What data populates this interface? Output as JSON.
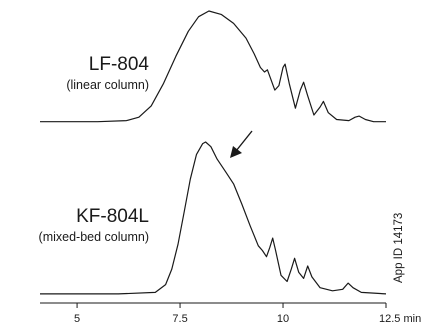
{
  "chart_data": {
    "type": "line",
    "x_unit": "min",
    "xlim": [
      4.1,
      12.5
    ],
    "xticks": [
      {
        "value": 5,
        "label": "5"
      },
      {
        "value": 7.5,
        "label": "7.5"
      },
      {
        "value": 10,
        "label": "10"
      },
      {
        "value": 12.5,
        "label": "12.5 min"
      }
    ],
    "traces": [
      {
        "label": "LF-804",
        "sublabel": "(linear column)",
        "points": [
          [
            4.1,
            0.02
          ],
          [
            5.5,
            0.02
          ],
          [
            6.2,
            0.03
          ],
          [
            6.5,
            0.06
          ],
          [
            6.8,
            0.16
          ],
          [
            7.1,
            0.36
          ],
          [
            7.4,
            0.6
          ],
          [
            7.7,
            0.82
          ],
          [
            7.95,
            0.95
          ],
          [
            8.2,
            1.0
          ],
          [
            8.5,
            0.97
          ],
          [
            8.8,
            0.89
          ],
          [
            9.1,
            0.76
          ],
          [
            9.3,
            0.62
          ],
          [
            9.45,
            0.5
          ],
          [
            9.55,
            0.46
          ],
          [
            9.62,
            0.48
          ],
          [
            9.7,
            0.4
          ],
          [
            9.8,
            0.3
          ],
          [
            9.9,
            0.34
          ],
          [
            10.0,
            0.5
          ],
          [
            10.05,
            0.53
          ],
          [
            10.15,
            0.36
          ],
          [
            10.3,
            0.14
          ],
          [
            10.42,
            0.3
          ],
          [
            10.5,
            0.37
          ],
          [
            10.6,
            0.25
          ],
          [
            10.75,
            0.08
          ],
          [
            10.9,
            0.15
          ],
          [
            10.98,
            0.2
          ],
          [
            11.1,
            0.1
          ],
          [
            11.3,
            0.04
          ],
          [
            11.6,
            0.03
          ],
          [
            11.75,
            0.06
          ],
          [
            11.85,
            0.07
          ],
          [
            12.0,
            0.04
          ],
          [
            12.2,
            0.02
          ],
          [
            12.5,
            0.02
          ]
        ]
      },
      {
        "label": "KF-804L",
        "sublabel": "(mixed-bed column)",
        "points": [
          [
            4.1,
            0.02
          ],
          [
            6.0,
            0.02
          ],
          [
            6.9,
            0.03
          ],
          [
            7.15,
            0.08
          ],
          [
            7.3,
            0.18
          ],
          [
            7.45,
            0.34
          ],
          [
            7.6,
            0.55
          ],
          [
            7.75,
            0.76
          ],
          [
            7.9,
            0.92
          ],
          [
            8.05,
            0.99
          ],
          [
            8.12,
            1.0
          ],
          [
            8.25,
            0.97
          ],
          [
            8.4,
            0.89
          ],
          [
            8.6,
            0.81
          ],
          [
            8.8,
            0.73
          ],
          [
            9.0,
            0.6
          ],
          [
            9.2,
            0.46
          ],
          [
            9.4,
            0.33
          ],
          [
            9.5,
            0.3
          ],
          [
            9.6,
            0.26
          ],
          [
            9.68,
            0.32
          ],
          [
            9.75,
            0.38
          ],
          [
            9.82,
            0.3
          ],
          [
            9.95,
            0.14
          ],
          [
            10.1,
            0.1
          ],
          [
            10.2,
            0.18
          ],
          [
            10.28,
            0.25
          ],
          [
            10.38,
            0.16
          ],
          [
            10.5,
            0.12
          ],
          [
            10.6,
            0.2
          ],
          [
            10.7,
            0.13
          ],
          [
            10.9,
            0.06
          ],
          [
            11.2,
            0.04
          ],
          [
            11.45,
            0.05
          ],
          [
            11.58,
            0.09
          ],
          [
            11.7,
            0.06
          ],
          [
            11.9,
            0.03
          ],
          [
            12.5,
            0.02
          ]
        ]
      }
    ],
    "annotations": [
      {
        "type": "arrow",
        "x": 8.6,
        "trace": "KF-804L"
      }
    ]
  },
  "side_text": "App ID 14173"
}
